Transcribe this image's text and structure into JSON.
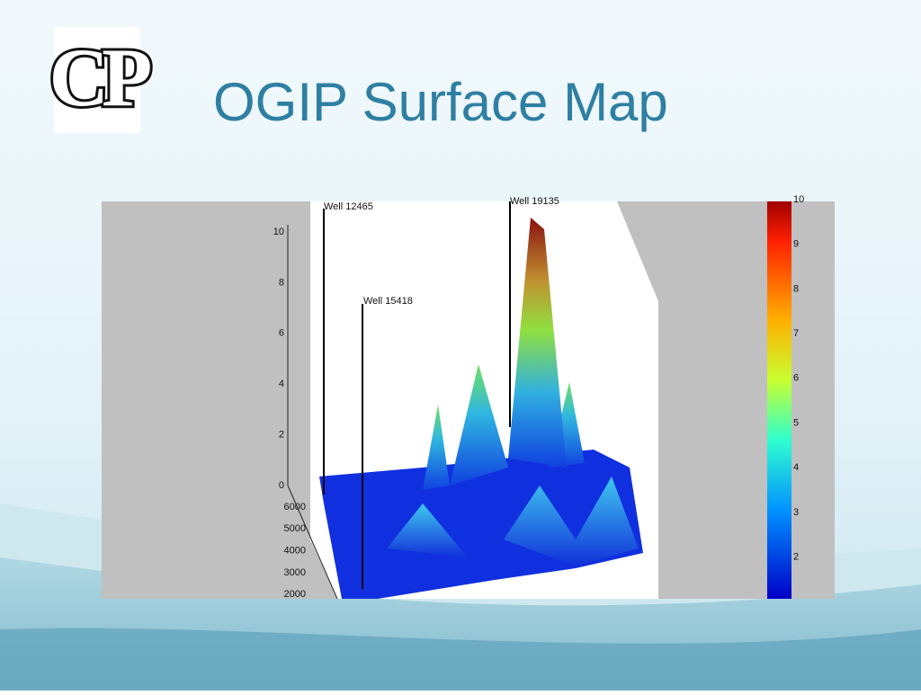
{
  "header": {
    "logo": "CP",
    "title": "OGIP Surface Map"
  },
  "figure": {
    "z_ticks": [
      0,
      2,
      4,
      6,
      8,
      10
    ],
    "y_ticks": [
      6000,
      5000,
      4000,
      3000,
      2000
    ],
    "colorbar_ticks": [
      10,
      9,
      8,
      7,
      6,
      5,
      4,
      3,
      2
    ],
    "wells": [
      "Well 12465",
      "Well 15418",
      "Well 19135"
    ]
  }
}
